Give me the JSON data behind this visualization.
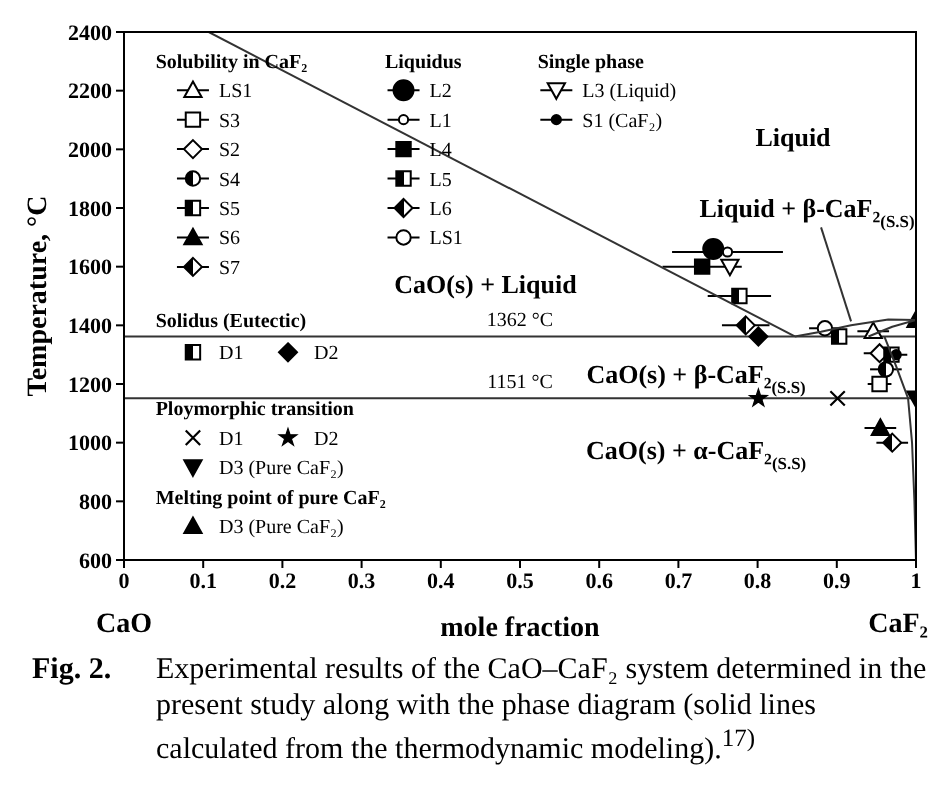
{
  "chart_data": {
    "type": "scatter",
    "xlabel": "mole fraction",
    "ylabel": "Temperature, °C",
    "xlim": [
      0,
      1
    ],
    "xticks": [
      0,
      0.1,
      0.2,
      0.3,
      0.4,
      0.5,
      0.6,
      0.7,
      0.8,
      0.9,
      1
    ],
    "ylim": [
      600,
      2400
    ],
    "yticks": [
      600,
      800,
      1000,
      1200,
      1400,
      1600,
      1800,
      2000,
      2200,
      2400
    ],
    "legend": "left",
    "ref_lines": [
      {
        "axis": "y",
        "value": 1362,
        "label": "1362 °C",
        "color": "#333333"
      },
      {
        "axis": "y",
        "value": 1151,
        "label": "1151 °C",
        "color": "#333333"
      }
    ],
    "annotations": [
      "Fig. 2.",
      "Experimental results of the CaO–CaF₂ system determined in the present study along with the phase diagram (solid lines calculated from the thermodynamic modeling).$^{17)}$",
      "CaO",
      "CaF₂",
      "Solubility in CaF₂",
      "Liquidus",
      "Single phase",
      "Solidus (Eutectic)",
      "Ploymorphic transition",
      "Melting point of pure CaF₂",
      "Liquid",
      "CaO(s) + Liquid",
      {
        "text": "Liquid + β-CaF₂$_{(S.S)}$",
        "x": 0.918,
        "y": 1400
      },
      "CaO(s) + β-CaF₂$_{(S.S)}$",
      "CaO(s) + α-CaF₂$_{(S.S)}$"
    ],
    "series": [
      {
        "name": "LS1",
        "color": "#000000",
        "marker": "triangle-open",
        "x": [
          0.946
        ],
        "values": [
          1380
        ],
        "xerrors": [
          0.02
        ]
      },
      {
        "name": "S3",
        "color": "#000000",
        "marker": "square-open",
        "x": [
          0.954
        ],
        "values": [
          1200
        ],
        "xerrors": [
          0.015
        ]
      },
      {
        "name": "S2",
        "color": "#000000",
        "marker": "diamond-open",
        "x": [
          0.954
        ],
        "values": [
          1305
        ],
        "xerrors": [
          0.02
        ]
      },
      {
        "name": "S4",
        "color": "#000000",
        "marker": "circle-half",
        "x": [
          0.962
        ],
        "values": [
          1250
        ],
        "xerrors": [
          0.02
        ]
      },
      {
        "name": "S5",
        "color": "#000000",
        "marker": "square-half",
        "x": [
          0.969
        ],
        "values": [
          1300
        ],
        "xerrors": [
          0.02
        ]
      },
      {
        "name": "S6",
        "color": "#000000",
        "marker": "triangle",
        "x": [
          0.955
        ],
        "values": [
          1050
        ],
        "xerrors": [
          0.02
        ]
      },
      {
        "name": "S7",
        "color": "#000000",
        "marker": "diamond-half",
        "x": [
          0.97
        ],
        "values": [
          1000
        ],
        "xerrors": [
          0.02
        ]
      },
      {
        "name": "L2",
        "color": "#000000",
        "marker": "circle-large",
        "x": [
          0.744
        ],
        "values": [
          1660
        ]
      },
      {
        "name": "L1",
        "color": "#000000",
        "marker": "circle-open-small",
        "x": [
          0.762
        ],
        "values": [
          1650
        ],
        "xerrors": [
          0.07
        ]
      },
      {
        "name": "L4",
        "color": "#000000",
        "marker": "square",
        "x": [
          0.73
        ],
        "values": [
          1600
        ],
        "xerrors": [
          0.05
        ]
      },
      {
        "name": "L5",
        "color": "#000000",
        "marker": "square-half",
        "x": [
          0.777
        ],
        "values": [
          1500
        ],
        "xerrors": [
          0.04
        ]
      },
      {
        "name": "L6",
        "color": "#000000",
        "marker": "diamond-half",
        "x": [
          0.785
        ],
        "values": [
          1400
        ],
        "xerrors": [
          0.03
        ]
      },
      {
        "name": "LS1",
        "color": "#000000",
        "marker": "circle-open",
        "x": [
          0.885
        ],
        "values": [
          1390
        ],
        "xerrors": [
          0.02
        ]
      },
      {
        "name": "L3 (Liquid)",
        "color": "#000000",
        "marker": "triangle-down-open",
        "x": [
          0.765
        ],
        "values": [
          1600
        ]
      },
      {
        "name": "S1 (CaF₂)",
        "color": "#000000",
        "marker": "circle-small",
        "x": [
          0.975
        ],
        "values": [
          1300
        ]
      },
      {
        "name": "D1",
        "color": "#000000",
        "marker": "square-half",
        "x": [
          0.903
        ],
        "values": [
          1362
        ]
      },
      {
        "name": "D2",
        "color": "#000000",
        "marker": "diamond",
        "x": [
          0.801
        ],
        "values": [
          1362
        ]
      },
      {
        "name": "D1",
        "color": "#000000",
        "marker": "cross",
        "x": [
          0.901
        ],
        "values": [
          1151
        ]
      },
      {
        "name": "D2",
        "color": "#000000",
        "marker": "star",
        "x": [
          0.801
        ],
        "values": [
          1151
        ]
      },
      {
        "name": "D3 (Pure CaF₂)",
        "color": "#000000",
        "marker": "triangle-down",
        "x": [
          1
        ],
        "values": [
          1151
        ]
      },
      {
        "name": "D3 (Pure CaF₂)",
        "color": "#000000",
        "marker": "triangle",
        "x": [
          1
        ],
        "values": [
          1418
        ]
      },
      {
        "type": "line",
        "color": "#333333",
        "marker": "none",
        "x": [
          0.107,
          0.847
        ],
        "values": [
          2400,
          1362
        ]
      },
      {
        "type": "line",
        "color": "#333333",
        "marker": "none",
        "x": [
          0.847,
          0.88,
          0.918,
          0.965,
          1
        ],
        "values": [
          1362,
          1378,
          1400,
          1420,
          1418
        ]
      },
      {
        "type": "line",
        "color": "#333333",
        "marker": "none",
        "x": [
          0.94,
          0.97,
          1
        ],
        "values": [
          1362,
          1395,
          1418
        ]
      },
      {
        "type": "line",
        "color": "#333333",
        "marker": "none",
        "x": [
          0.96,
          0.975,
          0.99
        ],
        "values": [
          1362,
          1260,
          1151
        ]
      },
      {
        "type": "line",
        "color": "#333333",
        "marker": "none",
        "x": [
          0.99,
          0.995,
          0.998,
          1
        ],
        "values": [
          1151,
          1000,
          800,
          600
        ]
      }
    ]
  }
}
